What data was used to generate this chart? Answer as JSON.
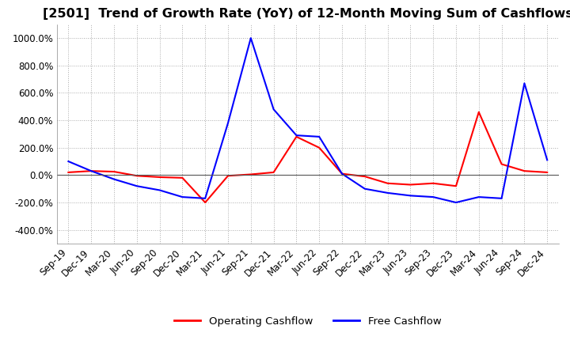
{
  "title": "[2501]  Trend of Growth Rate (YoY) of 12-Month Moving Sum of Cashflows",
  "ylim": [
    -500,
    1100
  ],
  "yticks": [
    -400,
    -200,
    0,
    200,
    400,
    600,
    800,
    1000
  ],
  "legend_labels": [
    "Operating Cashflow",
    "Free Cashflow"
  ],
  "legend_colors": [
    "#ff0000",
    "#0000ff"
  ],
  "x_labels": [
    "Sep-19",
    "Dec-19",
    "Mar-20",
    "Jun-20",
    "Sep-20",
    "Dec-20",
    "Mar-21",
    "Jun-21",
    "Sep-21",
    "Dec-21",
    "Mar-22",
    "Jun-22",
    "Sep-22",
    "Dec-22",
    "Mar-23",
    "Jun-23",
    "Sep-23",
    "Dec-23",
    "Mar-24",
    "Jun-24",
    "Sep-24",
    "Dec-24"
  ],
  "operating_cashflow": [
    20,
    30,
    25,
    -5,
    -15,
    -20,
    -200,
    -5,
    5,
    20,
    280,
    200,
    10,
    -10,
    -60,
    -70,
    -60,
    -80,
    460,
    80,
    30,
    20
  ],
  "free_cashflow": [
    100,
    30,
    -30,
    -80,
    -110,
    -160,
    -170,
    380,
    1000,
    480,
    290,
    280,
    10,
    -100,
    -130,
    -150,
    -160,
    -200,
    -160,
    -170,
    670,
    110
  ],
  "grid_color": "#aaaaaa",
  "background_color": "#ffffff",
  "title_fontsize": 11.5,
  "tick_fontsize": 8.5,
  "legend_fontsize": 9.5,
  "line_width": 1.5
}
